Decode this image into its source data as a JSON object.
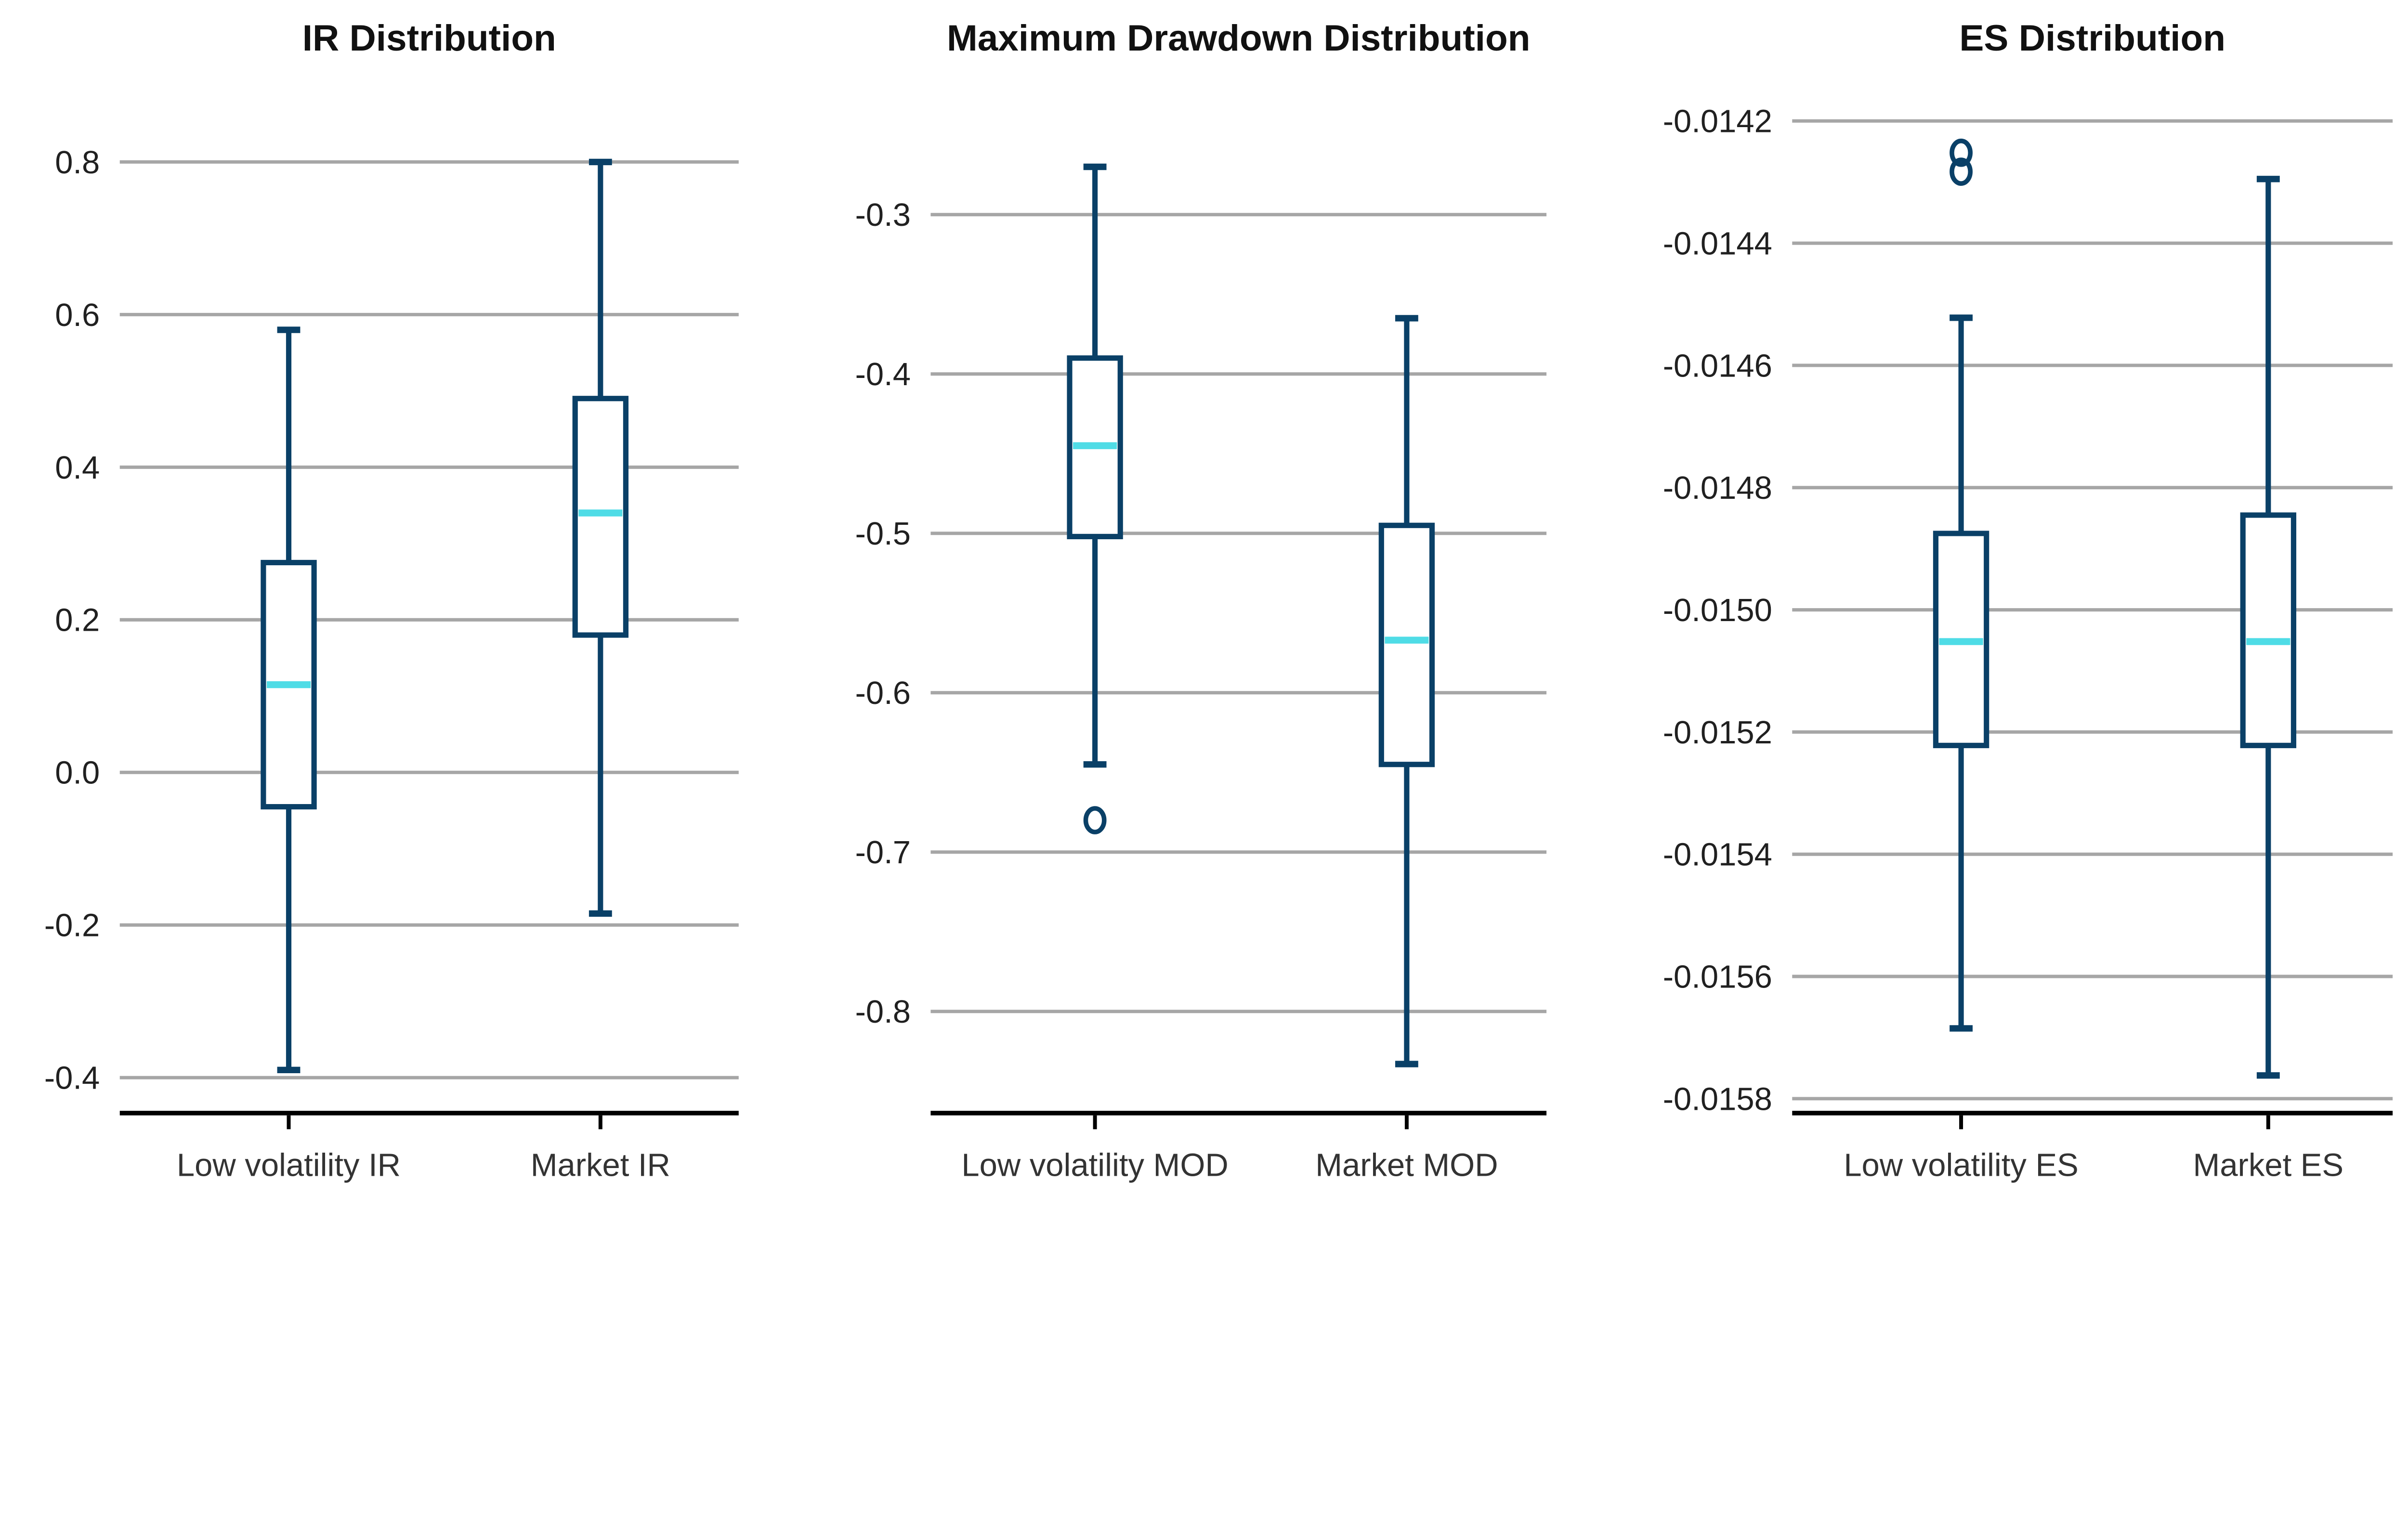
{
  "page": {
    "background": "#FFFFFF"
  },
  "style": {
    "box_color": "#0A4067",
    "box_fill": "#FFFFFF",
    "median_color": "#4FDCE6",
    "grid_color": "#A6A6A6",
    "axis_color": "#000000",
    "tick_label_color": "#202020",
    "category_label_color": "#333333",
    "title_color": "#111111"
  },
  "chart_data": [
    {
      "type": "box",
      "title": "IR Distribution",
      "categories": [
        "Low volatility IR",
        "Market IR"
      ],
      "ylim": [
        -0.44,
        0.85
      ],
      "grid": true,
      "yticks": [
        {
          "value": 0.8,
          "label": "0.8"
        },
        {
          "value": 0.6,
          "label": "0.6"
        },
        {
          "value": 0.4,
          "label": "0.4"
        },
        {
          "value": 0.2,
          "label": "0.2"
        },
        {
          "value": 0.0,
          "label": "0.0"
        },
        {
          "value": -0.2,
          "label": "-0.2"
        },
        {
          "value": -0.4,
          "label": "-0.4"
        }
      ],
      "series": [
        {
          "name": "Low volatility IR",
          "whisker_low": -0.39,
          "q1": -0.045,
          "median": 0.115,
          "q3": 0.275,
          "whisker_high": 0.58,
          "outliers": []
        },
        {
          "name": "Market IR",
          "whisker_low": -0.185,
          "q1": 0.18,
          "median": 0.34,
          "q3": 0.49,
          "whisker_high": 0.8,
          "outliers": []
        }
      ]
    },
    {
      "type": "box",
      "title": "Maximum Drawdown Distribution",
      "categories": [
        "Low volatility MOD",
        "Market MOD"
      ],
      "ylim": [
        -0.87,
        -0.23
      ],
      "grid": true,
      "yticks": [
        {
          "value": -0.3,
          "label": "-0.3"
        },
        {
          "value": -0.4,
          "label": "-0.4"
        },
        {
          "value": -0.5,
          "label": "-0.5"
        },
        {
          "value": -0.6,
          "label": "-0.6"
        },
        {
          "value": -0.7,
          "label": "-0.7"
        },
        {
          "value": -0.8,
          "label": "-0.8"
        }
      ],
      "series": [
        {
          "name": "Low volatility MOD",
          "whisker_low": -0.645,
          "q1": -0.502,
          "median": -0.445,
          "q3": -0.39,
          "whisker_high": -0.27,
          "outliers": [
            -0.68
          ]
        },
        {
          "name": "Market MOD",
          "whisker_low": -0.833,
          "q1": -0.645,
          "median": -0.567,
          "q3": -0.495,
          "whisker_high": -0.365,
          "outliers": []
        }
      ]
    },
    {
      "type": "box",
      "title": "ES Distribution",
      "categories": [
        "Low volatility ES",
        "Market ES"
      ],
      "ylim": [
        -0.01588,
        -0.01414
      ],
      "grid": true,
      "yticks": [
        {
          "value": -0.0142,
          "label": "-0.0142"
        },
        {
          "value": -0.0144,
          "label": "-0.0144"
        },
        {
          "value": -0.0146,
          "label": "-0.0146"
        },
        {
          "value": -0.0148,
          "label": "-0.0148"
        },
        {
          "value": -0.015,
          "label": "-0.0150"
        },
        {
          "value": -0.0152,
          "label": "-0.0152"
        },
        {
          "value": -0.0154,
          "label": "-0.0154"
        },
        {
          "value": -0.0156,
          "label": "-0.0156"
        },
        {
          "value": -0.0158,
          "label": "-0.0158"
        }
      ],
      "series": [
        {
          "name": "Low volatility ES",
          "whisker_low": -0.015685,
          "q1": -0.015222,
          "median": -0.015052,
          "q3": -0.014875,
          "whisker_high": -0.014522,
          "outliers": [
            -0.014252,
            -0.014283
          ]
        },
        {
          "name": "Market ES",
          "whisker_low": -0.015762,
          "q1": -0.015222,
          "median": -0.015052,
          "q3": -0.014845,
          "whisker_high": -0.014295,
          "outliers": []
        }
      ]
    }
  ]
}
